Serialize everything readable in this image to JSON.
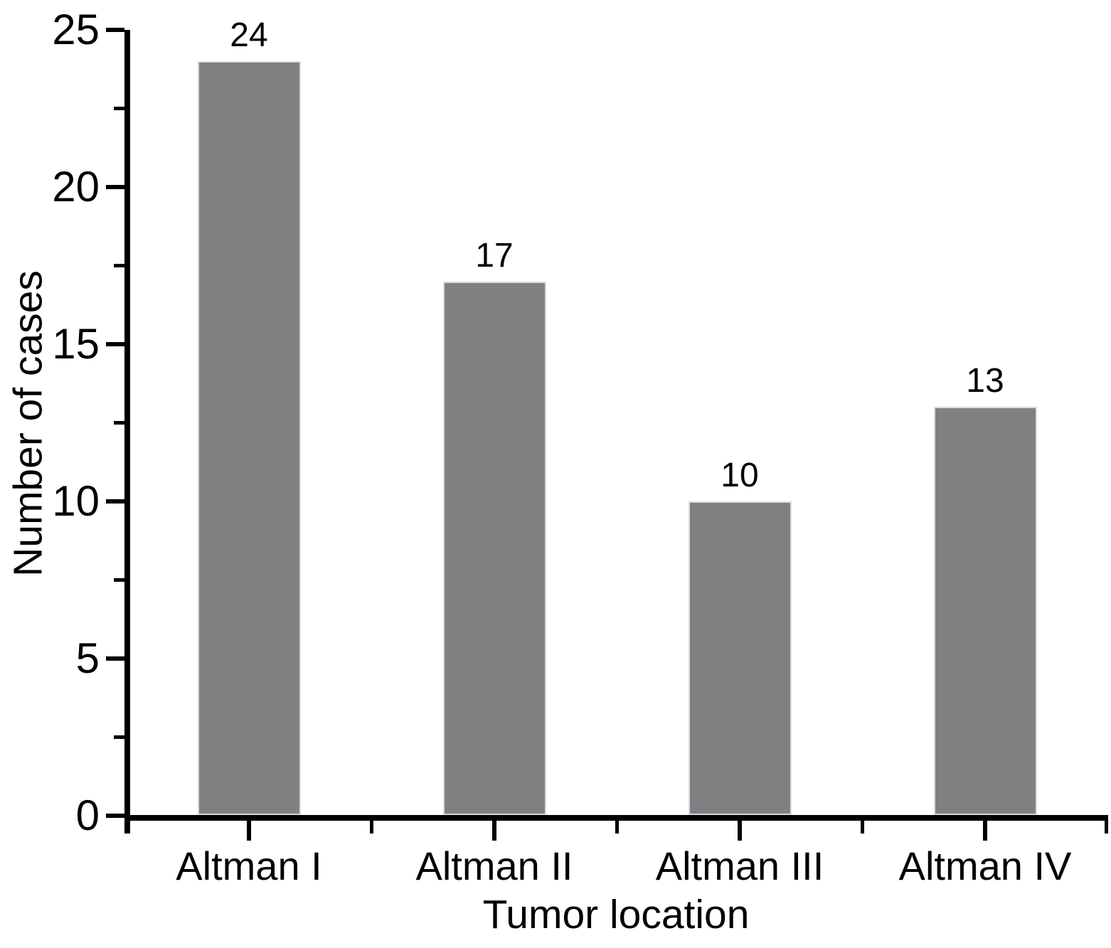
{
  "chart_data": {
    "type": "bar",
    "title": "",
    "categories": [
      "Altman I",
      "Altman II",
      "Altman III",
      "Altman IV"
    ],
    "values": [
      24,
      17,
      10,
      13
    ],
    "value_labels": [
      "24",
      "17",
      "10",
      "13"
    ],
    "xlabel": "Tumor location",
    "ylabel": "Number of cases",
    "ylim": [
      0,
      25
    ],
    "yticks_major": [
      0,
      5,
      10,
      15,
      20,
      25
    ],
    "ytick_labels": [
      "0",
      "5",
      "10",
      "15",
      "20",
      "25"
    ],
    "yticks_minor": [
      2.5,
      7.5,
      12.5,
      17.5,
      22.5
    ],
    "grid": false,
    "legend": "none",
    "bar_color": "#808080",
    "bar_edge_color": "#d9d9ea",
    "axis_color": "#000000",
    "text_color": "#000000",
    "background_color": "#ffffff"
  }
}
